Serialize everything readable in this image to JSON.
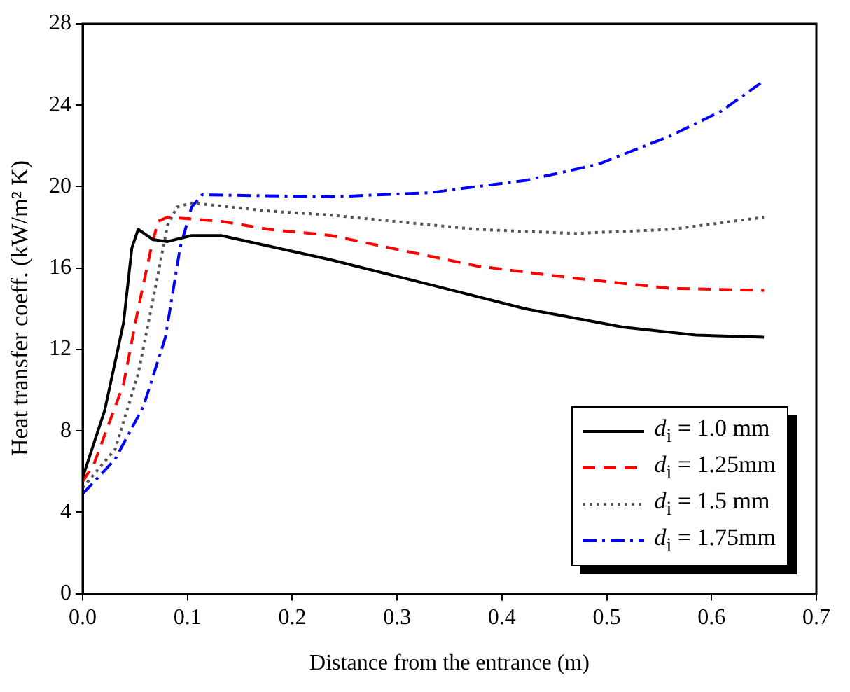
{
  "chart_data": {
    "type": "line",
    "xlabel": "Distance from the entrance (m)",
    "ylabel": "Heat transfer coeff. (kW/m² K)",
    "xlim": [
      0,
      0.7
    ],
    "xticks": [
      {
        "value": 0,
        "label": "0.0"
      },
      0.1,
      0.2,
      0.3,
      0.4,
      0.5,
      0.6,
      0.7
    ],
    "ylim": [
      0,
      28
    ],
    "yticks": [
      0,
      4,
      8,
      12,
      16,
      20,
      24,
      28
    ],
    "grid": false,
    "legend": "bottom right",
    "marker": "none",
    "series": [
      {
        "name": "d$_{i}$ = 1.0 mm",
        "color": "#000000",
        "line_style": "solid",
        "x": [
          0,
          0.021,
          0.039,
          0.047,
          0.053,
          0.067,
          0.081,
          0.104,
          0.132,
          0.237,
          0.33,
          0.422,
          0.515,
          0.585,
          0.65
        ],
        "values": [
          5.7,
          9.0,
          13.3,
          17.0,
          17.9,
          17.4,
          17.3,
          17.6,
          17.6,
          16.4,
          15.2,
          14.0,
          13.1,
          12.7,
          12.6
        ]
      },
      {
        "name": "d$_{i}$ = 1.25mm",
        "color": "#ff0000",
        "line_style": "dashed",
        "x": [
          0,
          0.011,
          0.039,
          0.053,
          0.065,
          0.072,
          0.081,
          0.132,
          0.178,
          0.237,
          0.376,
          0.469,
          0.561,
          0.65
        ],
        "values": [
          5.5,
          6.4,
          10.3,
          14.0,
          16.9,
          18.3,
          18.5,
          18.3,
          17.9,
          17.6,
          16.1,
          15.5,
          15.0,
          14.9
        ]
      },
      {
        "name": "d$_{i}$ = 1.5 mm",
        "color": "#555555",
        "line_style": "dotted",
        "x": [
          0,
          0.031,
          0.053,
          0.07,
          0.081,
          0.09,
          0.104,
          0.178,
          0.237,
          0.376,
          0.469,
          0.561,
          0.65
        ],
        "values": [
          5.2,
          7.1,
          10.8,
          15.2,
          18.1,
          19.0,
          19.2,
          18.8,
          18.6,
          17.9,
          17.7,
          17.9,
          18.5
        ]
      },
      {
        "name": "d$_{i}$ = 1.75mm",
        "color": "#0000ff",
        "line_style": "dashdot",
        "x": [
          0,
          0.031,
          0.058,
          0.079,
          0.093,
          0.104,
          0.114,
          0.237,
          0.33,
          0.422,
          0.492,
          0.561,
          0.609,
          0.65
        ],
        "values": [
          4.9,
          6.6,
          9.2,
          12.6,
          17.0,
          19.0,
          19.6,
          19.5,
          19.7,
          20.3,
          21.1,
          22.5,
          23.7,
          25.2
        ]
      }
    ]
  }
}
